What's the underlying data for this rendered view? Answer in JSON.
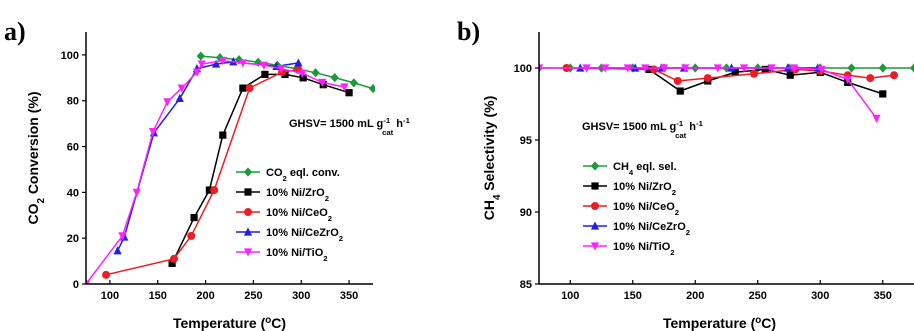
{
  "chart_data": [
    {
      "type": "line",
      "panel_label": "a)",
      "xlabel": "Temperature (°C)",
      "ylabel": {
        "pre": "CO",
        "sub": "2",
        "post": " Conversion (%)"
      },
      "xlim": [
        75,
        375
      ],
      "ylim": [
        0,
        110
      ],
      "xticks": [
        100,
        150,
        200,
        250,
        300,
        350
      ],
      "yticks": [
        0,
        20,
        40,
        60,
        80,
        100
      ],
      "annotation": {
        "pre": "GHSV= 1500 mL g",
        "sub": "cat",
        "sup": "-1",
        "post": " h",
        "sup2": "-1"
      },
      "legend_position": "center-right",
      "series": [
        {
          "name": "CO2 eql. conv.",
          "name_parts": {
            "pre": "CO",
            "sub": "2",
            "post": " eql. conv."
          },
          "color": "#1a9a3a",
          "marker": "diamond",
          "x": [
            195,
            215,
            235,
            255,
            275,
            295,
            315,
            335,
            355,
            375
          ],
          "y": [
            99.5,
            98.8,
            97.9,
            96.8,
            95.5,
            94.0,
            92.2,
            90.1,
            87.8,
            85.3
          ]
        },
        {
          "name": "10% Ni/ZrO2",
          "name_parts": {
            "pre": "10% Ni/ZrO",
            "sub": "2",
            "post": ""
          },
          "color": "#000000",
          "marker": "square",
          "x": [
            165,
            188,
            204,
            218,
            239,
            262,
            283,
            302,
            323,
            350
          ],
          "y": [
            9,
            29,
            41,
            65,
            85.5,
            91.5,
            91.5,
            90,
            87,
            83.5
          ]
        },
        {
          "name": "10% Ni/CeO2",
          "name_parts": {
            "pre": "10% Ni/CeO",
            "sub": "2",
            "post": ""
          },
          "color": "#ee1c24",
          "marker": "circle",
          "x": [
            96,
            167,
            185,
            209,
            246,
            280,
            297
          ],
          "y": [
            4,
            11,
            21,
            41,
            85.5,
            92.5,
            93.5
          ]
        },
        {
          "name": "10% Ni/CeZrO2",
          "name_parts": {
            "pre": "10% Ni/CeZrO",
            "sub": "2",
            "post": ""
          },
          "color": "#1f1fe5",
          "marker": "triangle-up",
          "x": [
            108,
            115,
            146,
            173,
            191,
            211,
            229,
            274,
            297
          ],
          "y": [
            14.5,
            20.5,
            66,
            81,
            94,
            96,
            97,
            95,
            96.5
          ]
        },
        {
          "name": "10% Ni/TiO2",
          "name_parts": {
            "pre": "10% Ni/TiO",
            "sub": "2",
            "post": ""
          },
          "color": "#ff22ff",
          "marker": "triangle-down",
          "x": [
            75,
            113,
            128,
            145,
            160,
            175,
            191,
            196,
            218,
            239,
            261,
            279,
            301,
            322,
            345
          ],
          "y": [
            0,
            21,
            40,
            66.5,
            79.5,
            85.5,
            92.5,
            96,
            97.5,
            96.5,
            95.5,
            94,
            92,
            88,
            86
          ]
        }
      ]
    },
    {
      "type": "line",
      "panel_label": "b)",
      "xlabel": "Temperature (°C)",
      "ylabel": {
        "pre": "CH",
        "sub": "4",
        "post": " Selectivity (%)"
      },
      "xlim": [
        75,
        375
      ],
      "ylim": [
        85,
        102.5
      ],
      "xticks": [
        100,
        150,
        200,
        250,
        300,
        350
      ],
      "yticks": [
        85,
        90,
        95,
        100
      ],
      "annotation": {
        "pre": "GHSV= 1500 mL g",
        "sub": "cat",
        "sup": "-1",
        "post": " h",
        "sup2": "-1"
      },
      "legend_position": "bottom-left",
      "series": [
        {
          "name": "CH4 eql. sel.",
          "name_parts": {
            "pre": "CH",
            "sub": "4",
            "post": " eql. sel."
          },
          "color": "#1a9a3a",
          "marker": "diamond",
          "x": [
            75,
            100,
            125,
            150,
            175,
            200,
            225,
            250,
            275,
            300,
            325,
            350,
            375
          ],
          "y": [
            100,
            100,
            100,
            100,
            100,
            100,
            100,
            100,
            100,
            100,
            100,
            100,
            100
          ]
        },
        {
          "name": "10% Ni/ZrO2",
          "name_parts": {
            "pre": "10% Ni/ZrO",
            "sub": "2",
            "post": ""
          },
          "color": "#000000",
          "marker": "square",
          "x": [
            163,
            188,
            210,
            232,
            256,
            276,
            300,
            322,
            350
          ],
          "y": [
            99.9,
            98.4,
            99.1,
            99.7,
            99.9,
            99.5,
            99.7,
            99.0,
            98.2
          ]
        },
        {
          "name": "10% Ni/CeO2",
          "name_parts": {
            "pre": "10% Ni/CeO",
            "sub": "2",
            "post": ""
          },
          "color": "#ee1c24",
          "marker": "circle",
          "x": [
            97,
            167,
            186,
            210,
            247,
            280,
            300,
            322,
            340,
            359
          ],
          "y": [
            100,
            99.9,
            99.1,
            99.3,
            99.6,
            99.9,
            99.8,
            99.5,
            99.3,
            99.5
          ]
        },
        {
          "name": "10% Ni/CeZrO2",
          "name_parts": {
            "pre": "10% Ni/CeZrO",
            "sub": "2",
            "post": ""
          },
          "color": "#1f1fe5",
          "marker": "triangle-up",
          "x": [
            108,
            152,
            173,
            191,
            229,
            274,
            298
          ],
          "y": [
            100,
            100,
            100,
            100,
            100,
            100,
            100
          ]
        },
        {
          "name": "10% Ni/TiO2",
          "name_parts": {
            "pre": "10% Ni/TiO",
            "sub": "2",
            "post": ""
          },
          "color": "#ff22ff",
          "marker": "triangle-down",
          "x": [
            75,
            113,
            128,
            146,
            160,
            175,
            192,
            218,
            239,
            261,
            279,
            301,
            322,
            345
          ],
          "y": [
            100,
            100,
            100,
            100,
            100,
            100,
            100,
            100,
            100,
            100,
            100,
            99.9,
            99.2,
            96.5
          ]
        }
      ]
    }
  ]
}
